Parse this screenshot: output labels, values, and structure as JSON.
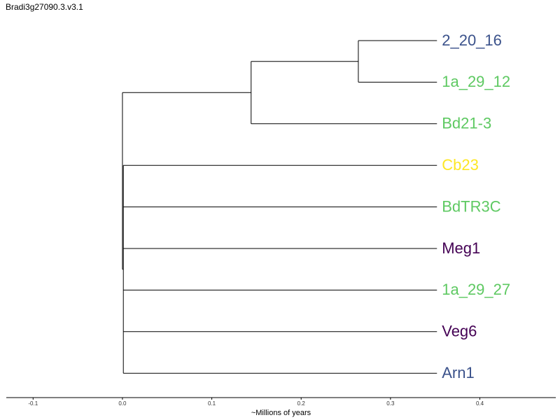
{
  "title": "Bradi3g27090.3.v3.1",
  "chart_data": {
    "type": "dendrogram",
    "xlabel": "~Millions of years",
    "xlim": [
      -0.13,
      0.485
    ],
    "ticks": [
      -0.1,
      0.0,
      0.1,
      0.2,
      0.3,
      0.4
    ],
    "tick_labels": [
      "-0.1",
      "0.0",
      "0.1",
      "0.2",
      "0.3",
      "0.4"
    ],
    "leaves": [
      {
        "name": "2_20_16",
        "color": "#3b528b"
      },
      {
        "name": "1a_29_12",
        "color": "#5ec962"
      },
      {
        "name": "Bd21-3",
        "color": "#5ec962"
      },
      {
        "name": "Cb23",
        "color": "#fde725"
      },
      {
        "name": "BdTR3C",
        "color": "#5ec962"
      },
      {
        "name": "Meg1",
        "color": "#440154"
      },
      {
        "name": "1a_29_27",
        "color": "#5ec962"
      },
      {
        "name": "Veg6",
        "color": "#440154"
      },
      {
        "name": "Arn1",
        "color": "#3b528b"
      }
    ],
    "leaf_x": 0.352,
    "root": {
      "x": 0.0,
      "children": [
        {
          "x": 0.144,
          "children": [
            {
              "x": 0.264,
              "children": [
                {
                  "leaf": 0
                },
                {
                  "leaf": 1
                }
              ]
            },
            {
              "leaf": 2
            }
          ]
        },
        {
          "x": 0.001,
          "children": [
            {
              "leaf": 3
            },
            {
              "leaf": 4
            },
            {
              "leaf": 5
            },
            {
              "leaf": 6
            },
            {
              "leaf": 7
            },
            {
              "leaf": 8
            }
          ]
        }
      ]
    }
  }
}
